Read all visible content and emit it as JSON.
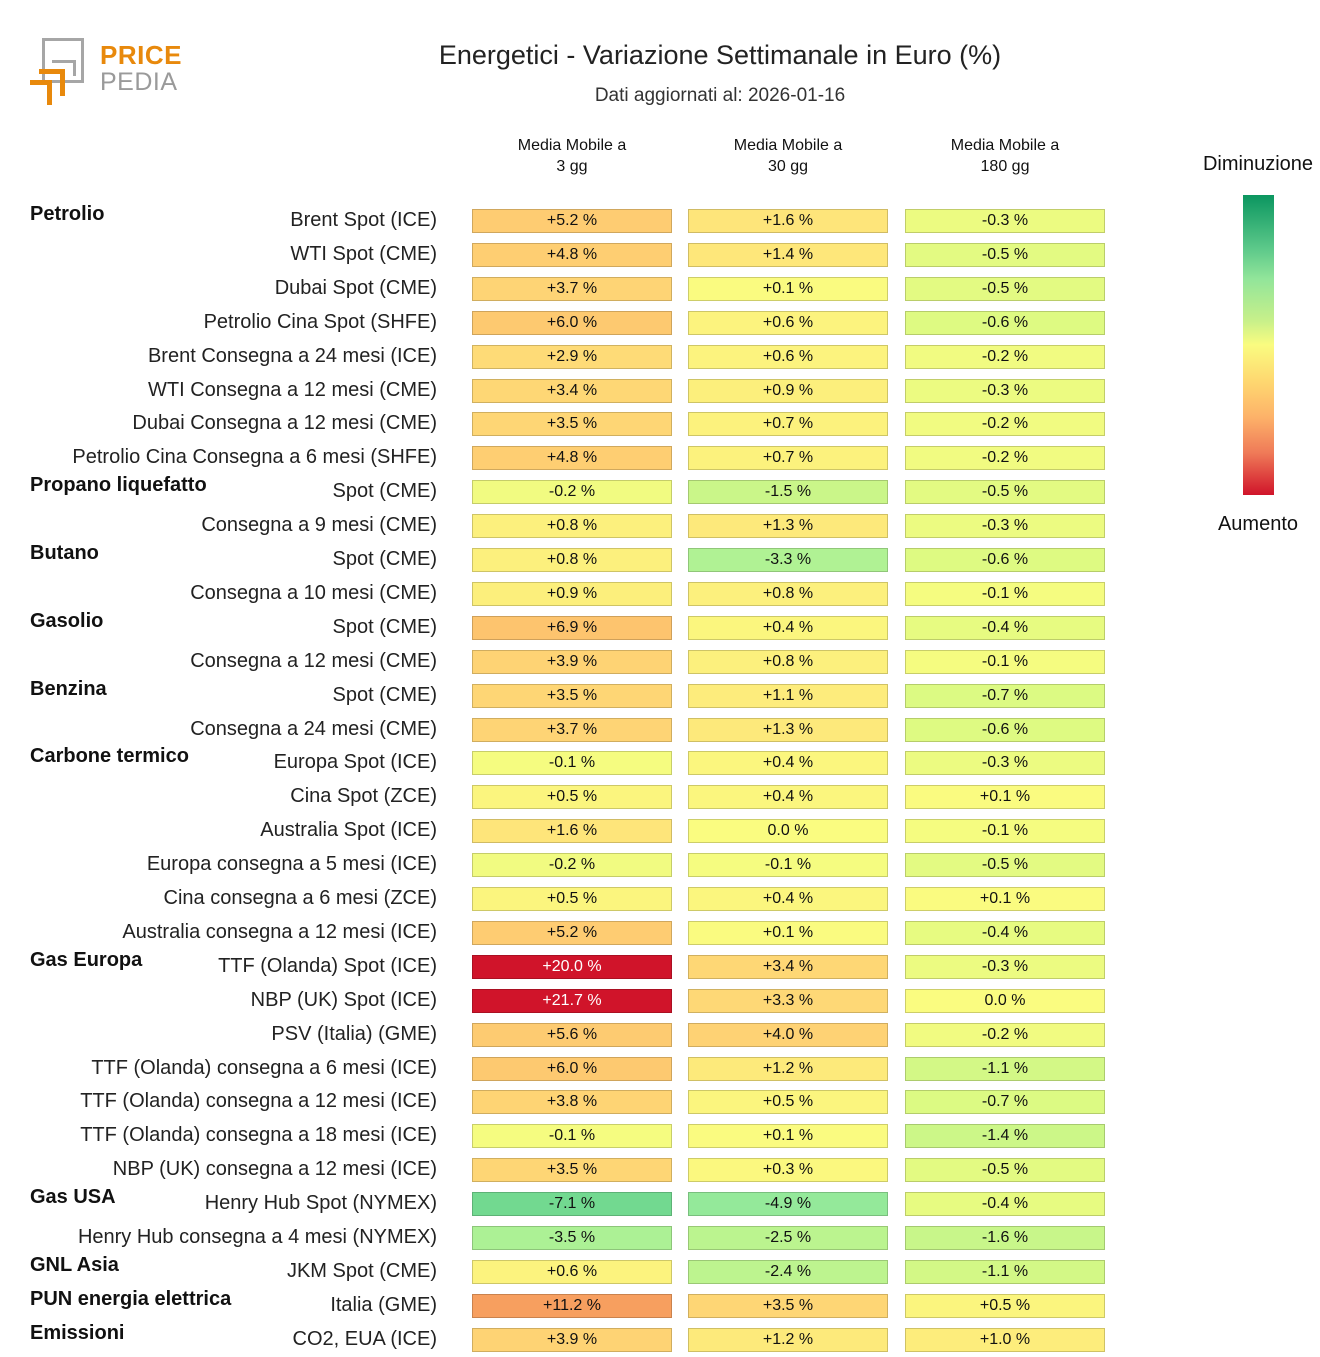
{
  "logo": {
    "line1": "PRICE",
    "line2": "PEDIA",
    "brand_color": "#e8890c",
    "secondary_color": "#a6a6a6"
  },
  "header": {
    "title": "Energetici - Variazione Settimanale in Euro (%)",
    "subtitle": "Dati aggiornati al: 2026-01-16"
  },
  "legend": {
    "top_label": "Diminuzione",
    "bottom_label": "Aumento",
    "colors": {
      "decrease": "#0b9660",
      "neutral": "#fafc80",
      "increase": "#d0142a"
    }
  },
  "chart_data": {
    "type": "heatmap",
    "title": "Energetici - Variazione Settimanale in Euro (%)",
    "subtitle": "Dati aggiornati al: 2026-01-16",
    "unit": "%",
    "columns": [
      {
        "line1": "Media Mobile a",
        "line2": "3 gg"
      },
      {
        "line1": "Media Mobile a",
        "line2": "30 gg"
      },
      {
        "line1": "Media Mobile a",
        "line2": "180 gg"
      }
    ],
    "color_scale": {
      "low_label": "Diminuzione",
      "high_label": "Aumento"
    },
    "rows": [
      {
        "group": "Petrolio",
        "label": "Brent Spot (ICE)",
        "values": [
          5.2,
          1.6,
          -0.3
        ]
      },
      {
        "group": "",
        "label": "WTI Spot (CME)",
        "values": [
          4.8,
          1.4,
          -0.5
        ]
      },
      {
        "group": "",
        "label": "Dubai Spot (CME)",
        "values": [
          3.7,
          0.1,
          -0.5
        ]
      },
      {
        "group": "",
        "label": "Petrolio Cina Spot (SHFE)",
        "values": [
          6.0,
          0.6,
          -0.6
        ]
      },
      {
        "group": "",
        "label": "Brent Consegna a 24 mesi (ICE)",
        "values": [
          2.9,
          0.6,
          -0.2
        ]
      },
      {
        "group": "",
        "label": "WTI Consegna a 12 mesi (CME)",
        "values": [
          3.4,
          0.9,
          -0.3
        ]
      },
      {
        "group": "",
        "label": "Dubai Consegna a 12 mesi (CME)",
        "values": [
          3.5,
          0.7,
          -0.2
        ]
      },
      {
        "group": "",
        "label": "Petrolio Cina Consegna a 6 mesi (SHFE)",
        "values": [
          4.8,
          0.7,
          -0.2
        ]
      },
      {
        "group": "Propano liquefatto",
        "label": "Spot (CME)",
        "values": [
          -0.2,
          -1.5,
          -0.5
        ]
      },
      {
        "group": "",
        "label": "Consegna a 9 mesi (CME)",
        "values": [
          0.8,
          1.3,
          -0.3
        ]
      },
      {
        "group": "Butano",
        "label": "Spot (CME)",
        "values": [
          0.8,
          -3.3,
          -0.6
        ]
      },
      {
        "group": "",
        "label": "Consegna a 10 mesi (CME)",
        "values": [
          0.9,
          0.8,
          -0.1
        ]
      },
      {
        "group": "Gasolio",
        "label": "Spot (CME)",
        "values": [
          6.9,
          0.4,
          -0.4
        ]
      },
      {
        "group": "",
        "label": "Consegna a 12 mesi (CME)",
        "values": [
          3.9,
          0.8,
          -0.1
        ]
      },
      {
        "group": "Benzina",
        "label": "Spot (CME)",
        "values": [
          3.5,
          1.1,
          -0.7
        ]
      },
      {
        "group": "",
        "label": "Consegna a 24 mesi (CME)",
        "values": [
          3.7,
          1.3,
          -0.6
        ]
      },
      {
        "group": "Carbone termico",
        "label": "Europa Spot (ICE)",
        "values": [
          -0.1,
          0.4,
          -0.3
        ]
      },
      {
        "group": "",
        "label": "Cina Spot (ZCE)",
        "values": [
          0.5,
          0.4,
          0.1
        ]
      },
      {
        "group": "",
        "label": "Australia Spot (ICE)",
        "values": [
          1.6,
          0.0,
          -0.1
        ]
      },
      {
        "group": "",
        "label": "Europa consegna a 5 mesi (ICE)",
        "values": [
          -0.2,
          -0.1,
          -0.5
        ]
      },
      {
        "group": "",
        "label": "Cina consegna a 6 mesi (ZCE)",
        "values": [
          0.5,
          0.4,
          0.1
        ]
      },
      {
        "group": "",
        "label": "Australia consegna a 12 mesi (ICE)",
        "values": [
          5.2,
          0.1,
          -0.4
        ]
      },
      {
        "group": "Gas Europa",
        "label": "TTF (Olanda) Spot (ICE)",
        "values": [
          20.0,
          3.4,
          -0.3
        ]
      },
      {
        "group": "",
        "label": "NBP (UK) Spot (ICE)",
        "values": [
          21.7,
          3.3,
          0.0
        ]
      },
      {
        "group": "",
        "label": "PSV (Italia) (GME)",
        "values": [
          5.6,
          4.0,
          -0.2
        ]
      },
      {
        "group": "",
        "label": "TTF (Olanda) consegna a 6 mesi (ICE)",
        "values": [
          6.0,
          1.2,
          -1.1
        ]
      },
      {
        "group": "",
        "label": "TTF (Olanda) consegna a 12 mesi (ICE)",
        "values": [
          3.8,
          0.5,
          -0.7
        ]
      },
      {
        "group": "",
        "label": "TTF (Olanda) consegna a 18 mesi (ICE)",
        "values": [
          -0.1,
          0.1,
          -1.4
        ]
      },
      {
        "group": "",
        "label": "NBP (UK) consegna a 12 mesi (ICE)",
        "values": [
          3.5,
          0.3,
          -0.5
        ]
      },
      {
        "group": "Gas USA",
        "label": "Henry Hub Spot (NYMEX)",
        "values": [
          -7.1,
          -4.9,
          -0.4
        ]
      },
      {
        "group": "",
        "label": "Henry Hub consegna a 4 mesi (NYMEX)",
        "values": [
          -3.5,
          -2.5,
          -1.6
        ]
      },
      {
        "group": "GNL Asia",
        "label": "JKM Spot (CME)",
        "values": [
          0.6,
          -2.4,
          -1.1
        ]
      },
      {
        "group": "PUN energia elettrica",
        "label": "Italia (GME)",
        "values": [
          11.2,
          3.5,
          0.5
        ]
      },
      {
        "group": "Emissioni",
        "label": "CO2, EUA (ICE)",
        "values": [
          3.9,
          1.2,
          1.0
        ]
      }
    ]
  }
}
